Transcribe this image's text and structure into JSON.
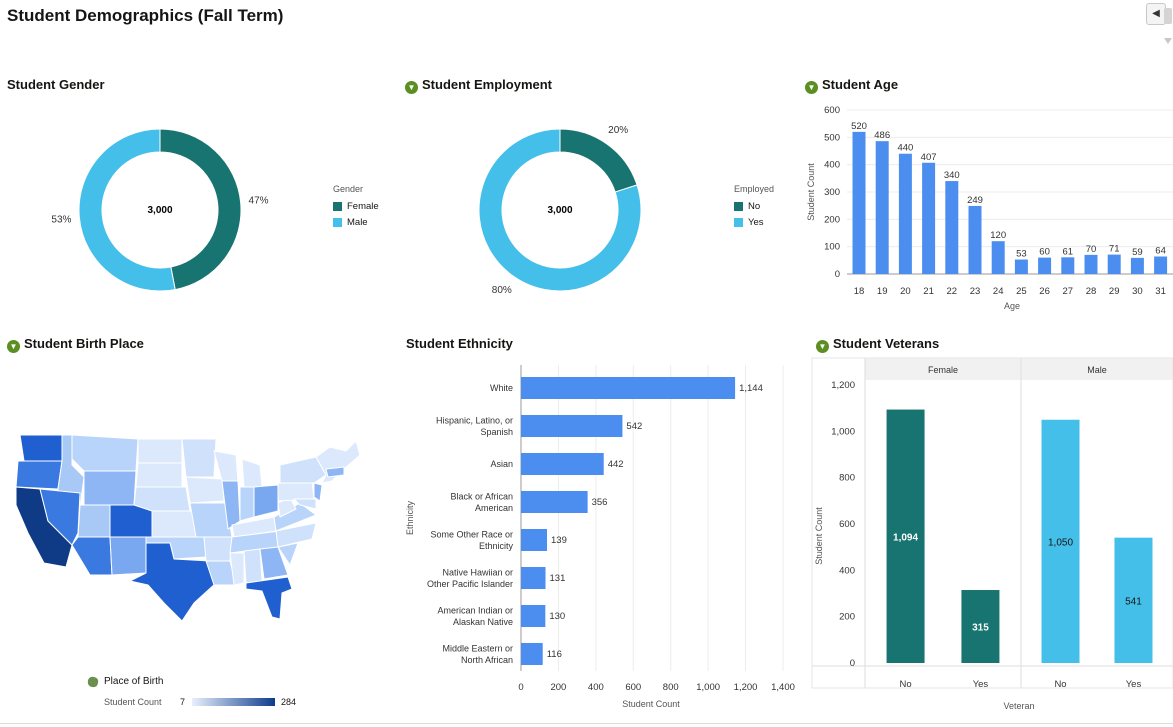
{
  "page": {
    "title": "Student Demographics (Fall Term)"
  },
  "colors": {
    "teal": "#177470",
    "sky": "#44bfe9",
    "blue": "#4c8ef0",
    "filter": "#5b8f22"
  },
  "panels": {
    "gender": {
      "title": "Student Gender",
      "center_label": "3,000",
      "legend_title": "Gender"
    },
    "employment": {
      "title": "Student Employment",
      "center_label": "3,000",
      "legend_title": "Employed"
    },
    "age": {
      "title": "Student Age"
    },
    "birthplace": {
      "title": "Student Birth Place",
      "legend_title": "Place of Birth",
      "scale_label": "Student Count",
      "scale_min": "7",
      "scale_max": "284"
    },
    "ethnicity": {
      "title": "Student Ethnicity"
    },
    "veterans": {
      "title": "Student Veterans"
    }
  },
  "chart_data": [
    {
      "id": "gender",
      "type": "pie",
      "title": "Student Gender",
      "total": 3000,
      "slices": [
        {
          "label": "Female",
          "value": 47,
          "display": "47%"
        },
        {
          "label": "Male",
          "value": 53,
          "display": "53%"
        }
      ]
    },
    {
      "id": "employment",
      "type": "pie",
      "title": "Student Employment",
      "total": 3000,
      "slices": [
        {
          "label": "No",
          "value": 20,
          "display": "20%"
        },
        {
          "label": "Yes",
          "value": 80,
          "display": "80%"
        }
      ]
    },
    {
      "id": "age",
      "type": "bar",
      "title": "Student Age",
      "categories": [
        "18",
        "19",
        "20",
        "21",
        "22",
        "23",
        "24",
        "25",
        "26",
        "27",
        "28",
        "29",
        "30",
        "31"
      ],
      "values": [
        520,
        486,
        440,
        407,
        340,
        249,
        120,
        53,
        60,
        61,
        70,
        71,
        59,
        64
      ],
      "xlabel": "Age",
      "ylabel": "Student Count",
      "ylim": [
        0,
        600
      ],
      "yticks": [
        "0",
        "100",
        "200",
        "300",
        "400",
        "500",
        "600"
      ]
    },
    {
      "id": "ethnicity",
      "type": "bar",
      "orientation": "horizontal",
      "title": "Student Ethnicity",
      "categories": [
        [
          "White"
        ],
        [
          "Hispanic, Latino, or",
          "Spanish"
        ],
        [
          "Asian"
        ],
        [
          "Black or African",
          "American"
        ],
        [
          "Some Other Race or",
          "Ethnicity"
        ],
        [
          "Native Hawiian or",
          "Other Pacific Islander"
        ],
        [
          "American Indian or",
          "Alaskan Native"
        ],
        [
          "Middle Eastern or",
          "North African"
        ]
      ],
      "values": [
        1144,
        542,
        442,
        356,
        139,
        131,
        130,
        116
      ],
      "value_labels": [
        "1,144",
        "542",
        "442",
        "356",
        "139",
        "131",
        "130",
        "116"
      ],
      "xlabel": "Student Count",
      "ylabel": "Ethnicity",
      "xlim": [
        0,
        1400
      ],
      "xticks": [
        "0",
        "200",
        "400",
        "600",
        "800",
        "1,000",
        "1,200",
        "1,400"
      ]
    },
    {
      "id": "veterans",
      "type": "bar",
      "title": "Student Veterans",
      "facets": [
        "Female",
        "Male"
      ],
      "categories": [
        "No",
        "Yes"
      ],
      "values": [
        [
          1094,
          315
        ],
        [
          1050,
          541
        ]
      ],
      "value_labels": [
        [
          "1,094",
          "315"
        ],
        [
          "1,050",
          "541"
        ]
      ],
      "xlabel": "Veteran",
      "ylabel": "Student Count",
      "ylim": [
        0,
        1200
      ],
      "yticks": [
        "0",
        "200",
        "400",
        "600",
        "800",
        "1,000",
        "1,200"
      ]
    }
  ]
}
